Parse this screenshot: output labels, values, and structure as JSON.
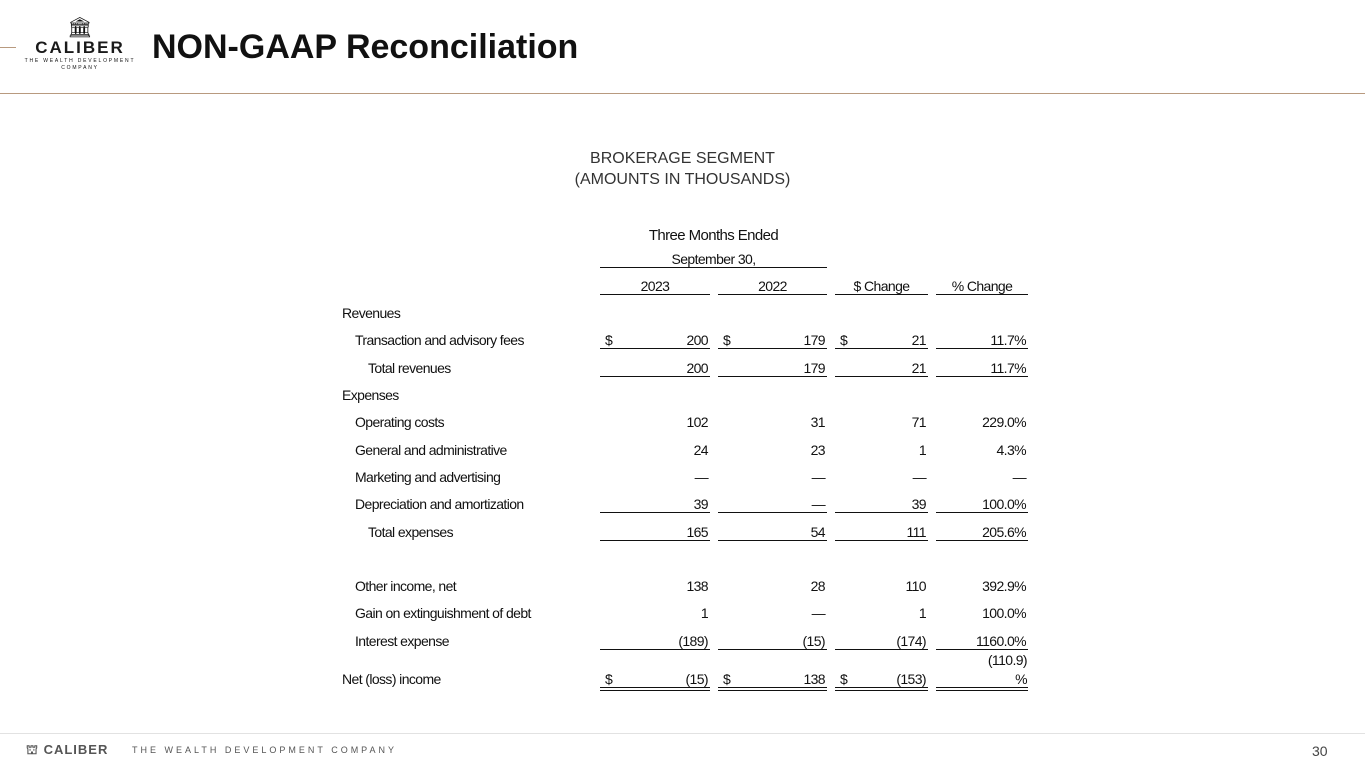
{
  "header": {
    "title": "NON-GAAP Reconciliation",
    "logo": {
      "name": "CALIBER",
      "tagline_1": "THE WEALTH DEVELOPMENT",
      "tagline_2": "COMPANY"
    }
  },
  "section": {
    "title": "BROKERAGE SEGMENT",
    "subtitle": "(AMOUNTS IN THOUSANDS)"
  },
  "table": {
    "period_header": "Three Months Ended",
    "period_date": "September 30,",
    "columns": [
      "2023",
      "2022",
      "$ Change",
      "% Change"
    ],
    "rows": [
      {
        "label": "Revenues",
        "indent": 0
      },
      {
        "label": "Transaction and advisory fees",
        "indent": 1,
        "dollar": true,
        "values": [
          "200",
          "179",
          "21",
          "11.7%"
        ],
        "line": "single"
      },
      {
        "label": "Total revenues",
        "indent": 2,
        "values": [
          "200",
          "179",
          "21",
          "11.7%"
        ],
        "line": "single"
      },
      {
        "label": "Expenses",
        "indent": 0
      },
      {
        "label": "Operating costs",
        "indent": 1,
        "values": [
          "102",
          "31",
          "71",
          "229.0%"
        ]
      },
      {
        "label": "General and administrative",
        "indent": 1,
        "values": [
          "24",
          "23",
          "1",
          "4.3%"
        ]
      },
      {
        "label": "Marketing and advertising",
        "indent": 1,
        "values": [
          "—",
          "—",
          "—",
          "—"
        ]
      },
      {
        "label": "Depreciation and amortization",
        "indent": 1,
        "values": [
          "39",
          "—",
          "39",
          "100.0%"
        ],
        "line": "single"
      },
      {
        "label": "Total expenses",
        "indent": 2,
        "values": [
          "165",
          "54",
          "111",
          "205.6%"
        ],
        "line": "single"
      },
      {
        "label": "Other income, net",
        "indent": 1,
        "values": [
          "138",
          "28",
          "110",
          "392.9%"
        ]
      },
      {
        "label": "Gain on extinguishment of debt",
        "indent": 1,
        "values": [
          "1",
          "—",
          "1",
          "100.0%"
        ]
      },
      {
        "label": "Interest expense",
        "indent": 1,
        "values": [
          "(189)",
          "(15)",
          "(174)",
          "1160.0%"
        ],
        "line": "single"
      },
      {
        "label": "Net (loss) income",
        "indent": 0,
        "dollar": true,
        "values": [
          "(15)",
          "138",
          "(153)",
          "(110.9)"
        ],
        "pct_suffix": "%",
        "line": "double"
      }
    ],
    "currency_symbol": "$"
  },
  "footer": {
    "logo": "CALIBER",
    "tagline": "THE WEALTH DEVELOPMENT COMPANY",
    "page_number": "30"
  }
}
